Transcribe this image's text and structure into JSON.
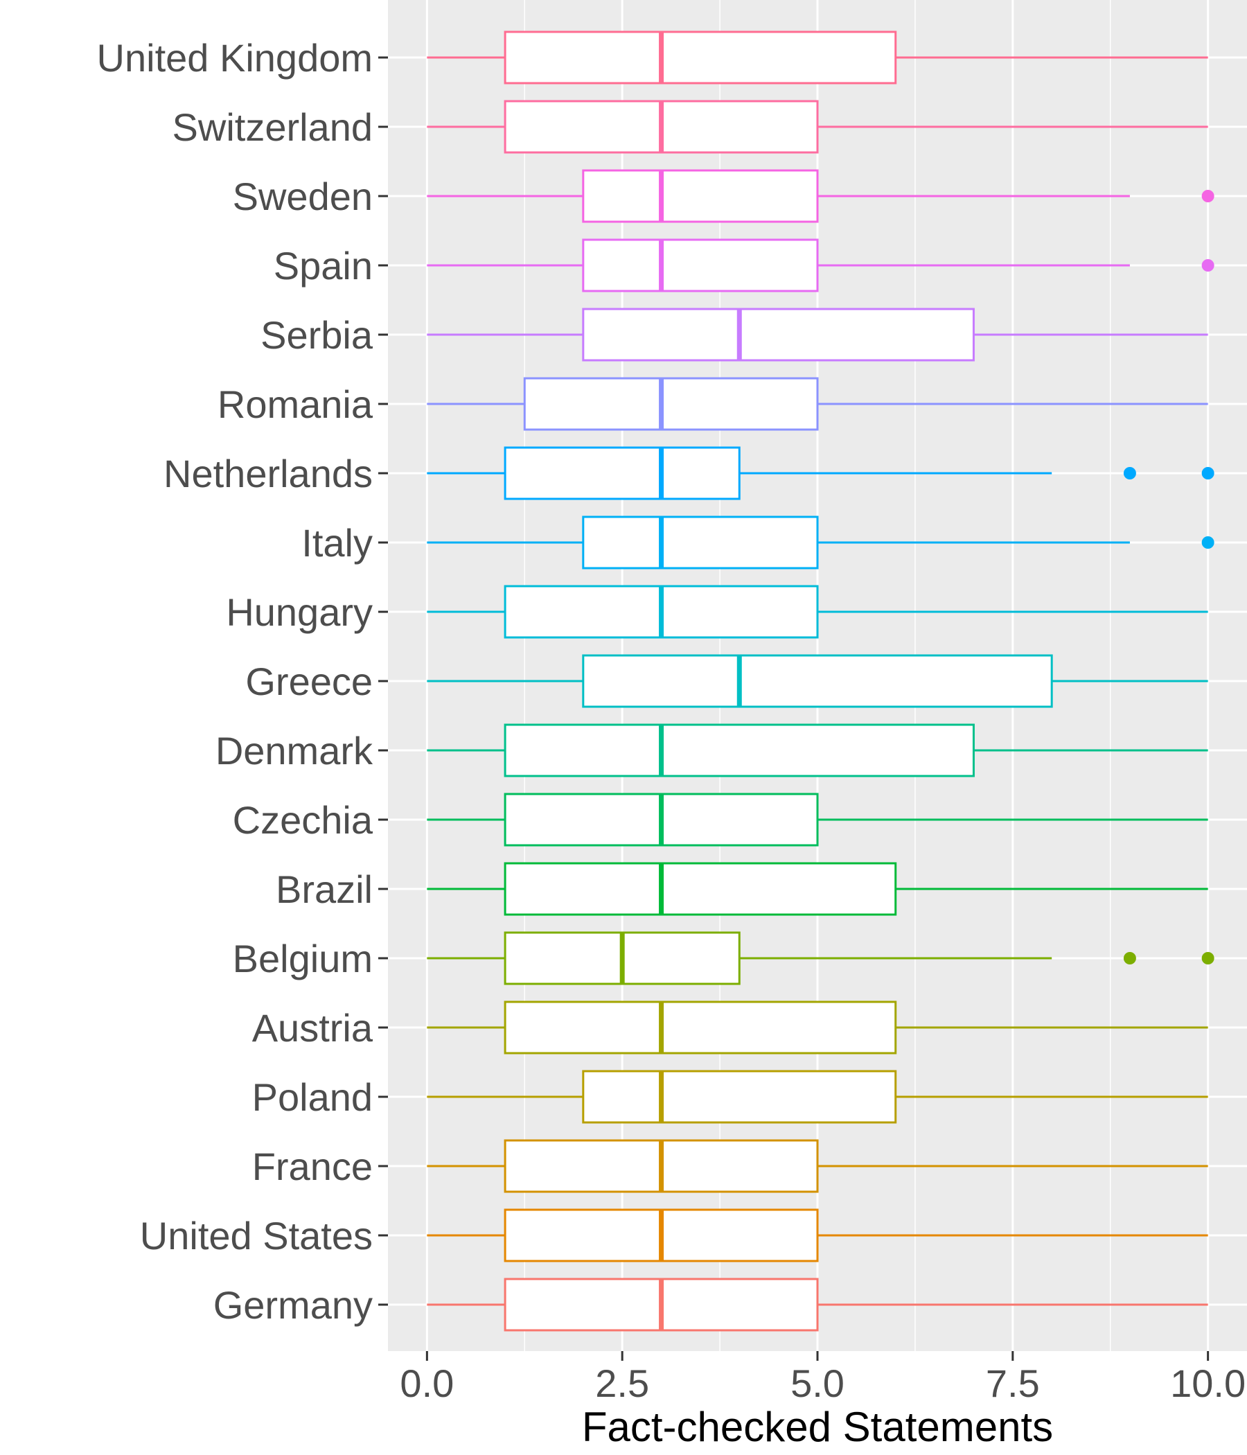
{
  "chart_data": {
    "type": "boxplot",
    "orientation": "horizontal",
    "title": "",
    "xlabel": "Fact-checked Statements",
    "ylabel": "",
    "xlim": [
      -0.5,
      10.5
    ],
    "x_ticks": [
      0,
      2.5,
      5,
      7.5,
      10
    ],
    "x_tick_labels": [
      "0.0",
      "2.5",
      "5.0",
      "7.5",
      "10.0"
    ],
    "grid": true,
    "legend": "none",
    "panel_background": "#ebebeb",
    "series": [
      {
        "name": "United Kingdom",
        "color": "#ff6c91",
        "min": 0,
        "q1": 1,
        "median": 3,
        "q3": 6,
        "max": 10,
        "outliers": []
      },
      {
        "name": "Switzerland",
        "color": "#fe6da0",
        "min": 0,
        "q1": 1,
        "median": 3,
        "q3": 5,
        "max": 10,
        "outliers": []
      },
      {
        "name": "Sweden",
        "color": "#f564e3",
        "min": 0,
        "q1": 2,
        "median": 3,
        "q3": 5,
        "max": 9,
        "outliers": [
          10
        ]
      },
      {
        "name": "Spain",
        "color": "#e76bf3",
        "min": 0,
        "q1": 2,
        "median": 3,
        "q3": 5,
        "max": 9,
        "outliers": [
          10
        ]
      },
      {
        "name": "Serbia",
        "color": "#c77cff",
        "min": 0,
        "q1": 2,
        "median": 4,
        "q3": 7,
        "max": 10,
        "outliers": []
      },
      {
        "name": "Romania",
        "color": "#8b93ff",
        "min": 0,
        "q1": 1.25,
        "median": 3,
        "q3": 5,
        "max": 10,
        "outliers": []
      },
      {
        "name": "Netherlands",
        "color": "#00a9ff",
        "min": 0,
        "q1": 1,
        "median": 3,
        "q3": 4,
        "max": 8,
        "outliers": [
          9,
          10
        ]
      },
      {
        "name": "Italy",
        "color": "#00b0f6",
        "min": 0,
        "q1": 2,
        "median": 3,
        "q3": 5,
        "max": 9,
        "outliers": [
          10
        ]
      },
      {
        "name": "Hungary",
        "color": "#00bcd8",
        "min": 0,
        "q1": 1,
        "median": 3,
        "q3": 5,
        "max": 10,
        "outliers": []
      },
      {
        "name": "Greece",
        "color": "#00bfc4",
        "min": 0,
        "q1": 2,
        "median": 4,
        "q3": 8,
        "max": 10,
        "outliers": []
      },
      {
        "name": "Denmark",
        "color": "#00c08b",
        "min": 0,
        "q1": 1,
        "median": 3,
        "q3": 7,
        "max": 10,
        "outliers": []
      },
      {
        "name": "Czechia",
        "color": "#00bd5c",
        "min": 0,
        "q1": 1,
        "median": 3,
        "q3": 5,
        "max": 10,
        "outliers": []
      },
      {
        "name": "Brazil",
        "color": "#00ba38",
        "min": 0,
        "q1": 1,
        "median": 3,
        "q3": 6,
        "max": 10,
        "outliers": []
      },
      {
        "name": "Belgium",
        "color": "#7cae00",
        "min": 0,
        "q1": 1,
        "median": 2.5,
        "q3": 4,
        "max": 8,
        "outliers": [
          9,
          10
        ]
      },
      {
        "name": "Austria",
        "color": "#a3a500",
        "min": 0,
        "q1": 1,
        "median": 3,
        "q3": 6,
        "max": 10,
        "outliers": []
      },
      {
        "name": "Poland",
        "color": "#b79f00",
        "min": 0,
        "q1": 2,
        "median": 3,
        "q3": 6,
        "max": 10,
        "outliers": []
      },
      {
        "name": "France",
        "color": "#d39200",
        "min": 0,
        "q1": 1,
        "median": 3,
        "q3": 5,
        "max": 10,
        "outliers": []
      },
      {
        "name": "United States",
        "color": "#e58700",
        "min": 0,
        "q1": 1,
        "median": 3,
        "q3": 5,
        "max": 10,
        "outliers": []
      },
      {
        "name": "Germany",
        "color": "#f8766d",
        "min": 0,
        "q1": 1,
        "median": 3,
        "q3": 5,
        "max": 10,
        "outliers": []
      }
    ]
  }
}
